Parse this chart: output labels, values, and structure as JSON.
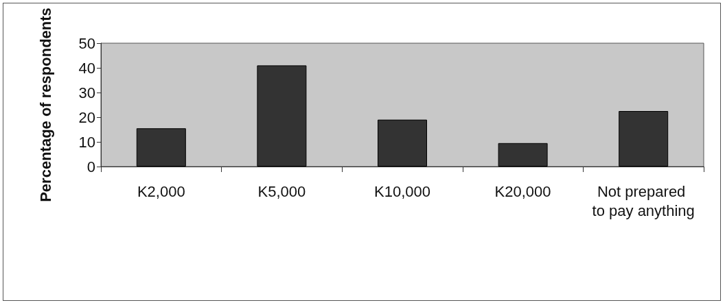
{
  "chart_data": {
    "type": "bar",
    "ylabel": "Percentage of respondents",
    "categories": [
      "K2,000",
      "K5,000",
      "K10,000",
      "K20,000",
      "Not prepared to pay anything"
    ],
    "values": [
      15.5,
      41,
      19,
      9.5,
      22.5
    ],
    "color": "#333333",
    "ylim": [
      0,
      50
    ],
    "yticks": [
      0,
      10,
      20,
      30,
      40,
      50
    ],
    "grid": false
  }
}
